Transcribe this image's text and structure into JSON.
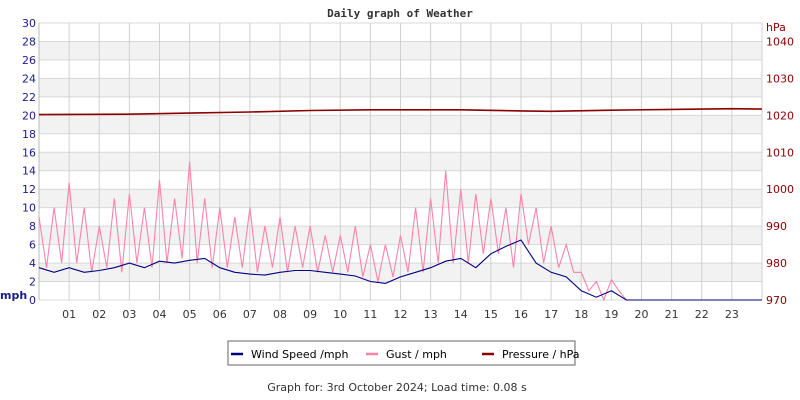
{
  "chart_data": {
    "type": "line",
    "title": "Daily graph of Weather",
    "footer": "Graph for: 3rd October 2024; Load time: 0.08 s",
    "left_axis": {
      "label": "mph",
      "range": [
        0,
        30
      ],
      "ticks": [
        0,
        2,
        4,
        6,
        8,
        10,
        12,
        14,
        16,
        18,
        20,
        22,
        24,
        26,
        28,
        30
      ],
      "color": "#1a1a8c"
    },
    "right_axis": {
      "label": "hPa",
      "range": [
        970,
        1045
      ],
      "ticks": [
        970,
        980,
        990,
        1000,
        1010,
        1020,
        1030,
        1040
      ],
      "color": "#8b0000"
    },
    "x_axis": {
      "range": [
        0,
        24
      ],
      "tick_labels": [
        "01",
        "02",
        "03",
        "04",
        "05",
        "06",
        "07",
        "08",
        "09",
        "10",
        "11",
        "12",
        "13",
        "14",
        "15",
        "16",
        "17",
        "18",
        "19",
        "20",
        "21",
        "22",
        "23"
      ]
    },
    "grid": true,
    "legend_position": "bottom",
    "series": [
      {
        "name": "Wind Speed /mph",
        "color": "#000080",
        "axis": "left",
        "x_step_hours": 0.5,
        "values": [
          3.5,
          3,
          3.5,
          3,
          3.2,
          3.5,
          4,
          3.5,
          4.2,
          4,
          4.3,
          4.5,
          3.5,
          3,
          2.8,
          2.7,
          3,
          3.2,
          3.2,
          3,
          2.8,
          2.6,
          2,
          1.8,
          2.5,
          3,
          3.5,
          4.2,
          4.5,
          3.5,
          5,
          5.8,
          6.5,
          4,
          3,
          2.5,
          1,
          0.3,
          1,
          0,
          0,
          0,
          0,
          0,
          0,
          0,
          0,
          0,
          0
        ]
      },
      {
        "name": "Gust / mph",
        "color": "#ff82a9",
        "axis": "left",
        "x_step_hours": 0.25,
        "values": [
          9,
          3.5,
          10,
          4,
          12.7,
          4,
          10,
          3,
          8,
          3.5,
          11,
          3,
          11.5,
          4,
          10,
          3.5,
          13,
          4,
          11,
          4.5,
          15,
          4,
          11,
          3.5,
          10,
          3.5,
          9,
          3.5,
          10,
          3,
          8,
          3.5,
          9,
          3,
          8,
          3.5,
          8,
          3,
          7,
          3,
          7,
          3,
          8,
          2.5,
          6,
          2,
          6,
          2.5,
          7,
          3,
          10,
          3,
          11,
          4,
          14,
          4,
          12,
          4,
          11.5,
          5,
          11,
          5,
          10,
          3.5,
          11.5,
          6,
          10,
          4,
          8,
          3.5,
          6,
          3,
          3,
          1,
          2,
          0,
          2.2,
          1,
          0,
          0,
          0,
          0,
          0,
          0,
          0,
          0,
          0,
          0,
          0,
          0,
          0,
          0,
          0,
          0,
          0,
          0,
          0
        ]
      },
      {
        "name": "Pressure / hPa",
        "color": "#8b0000",
        "axis": "right",
        "x": [
          0,
          3,
          5,
          7,
          9,
          11,
          14,
          16,
          17,
          19,
          21,
          23,
          24
        ],
        "values": [
          1020.2,
          1020.3,
          1020.6,
          1020.9,
          1021.3,
          1021.5,
          1021.5,
          1021.2,
          1021.1,
          1021.4,
          1021.6,
          1021.8,
          1021.7
        ]
      }
    ]
  }
}
